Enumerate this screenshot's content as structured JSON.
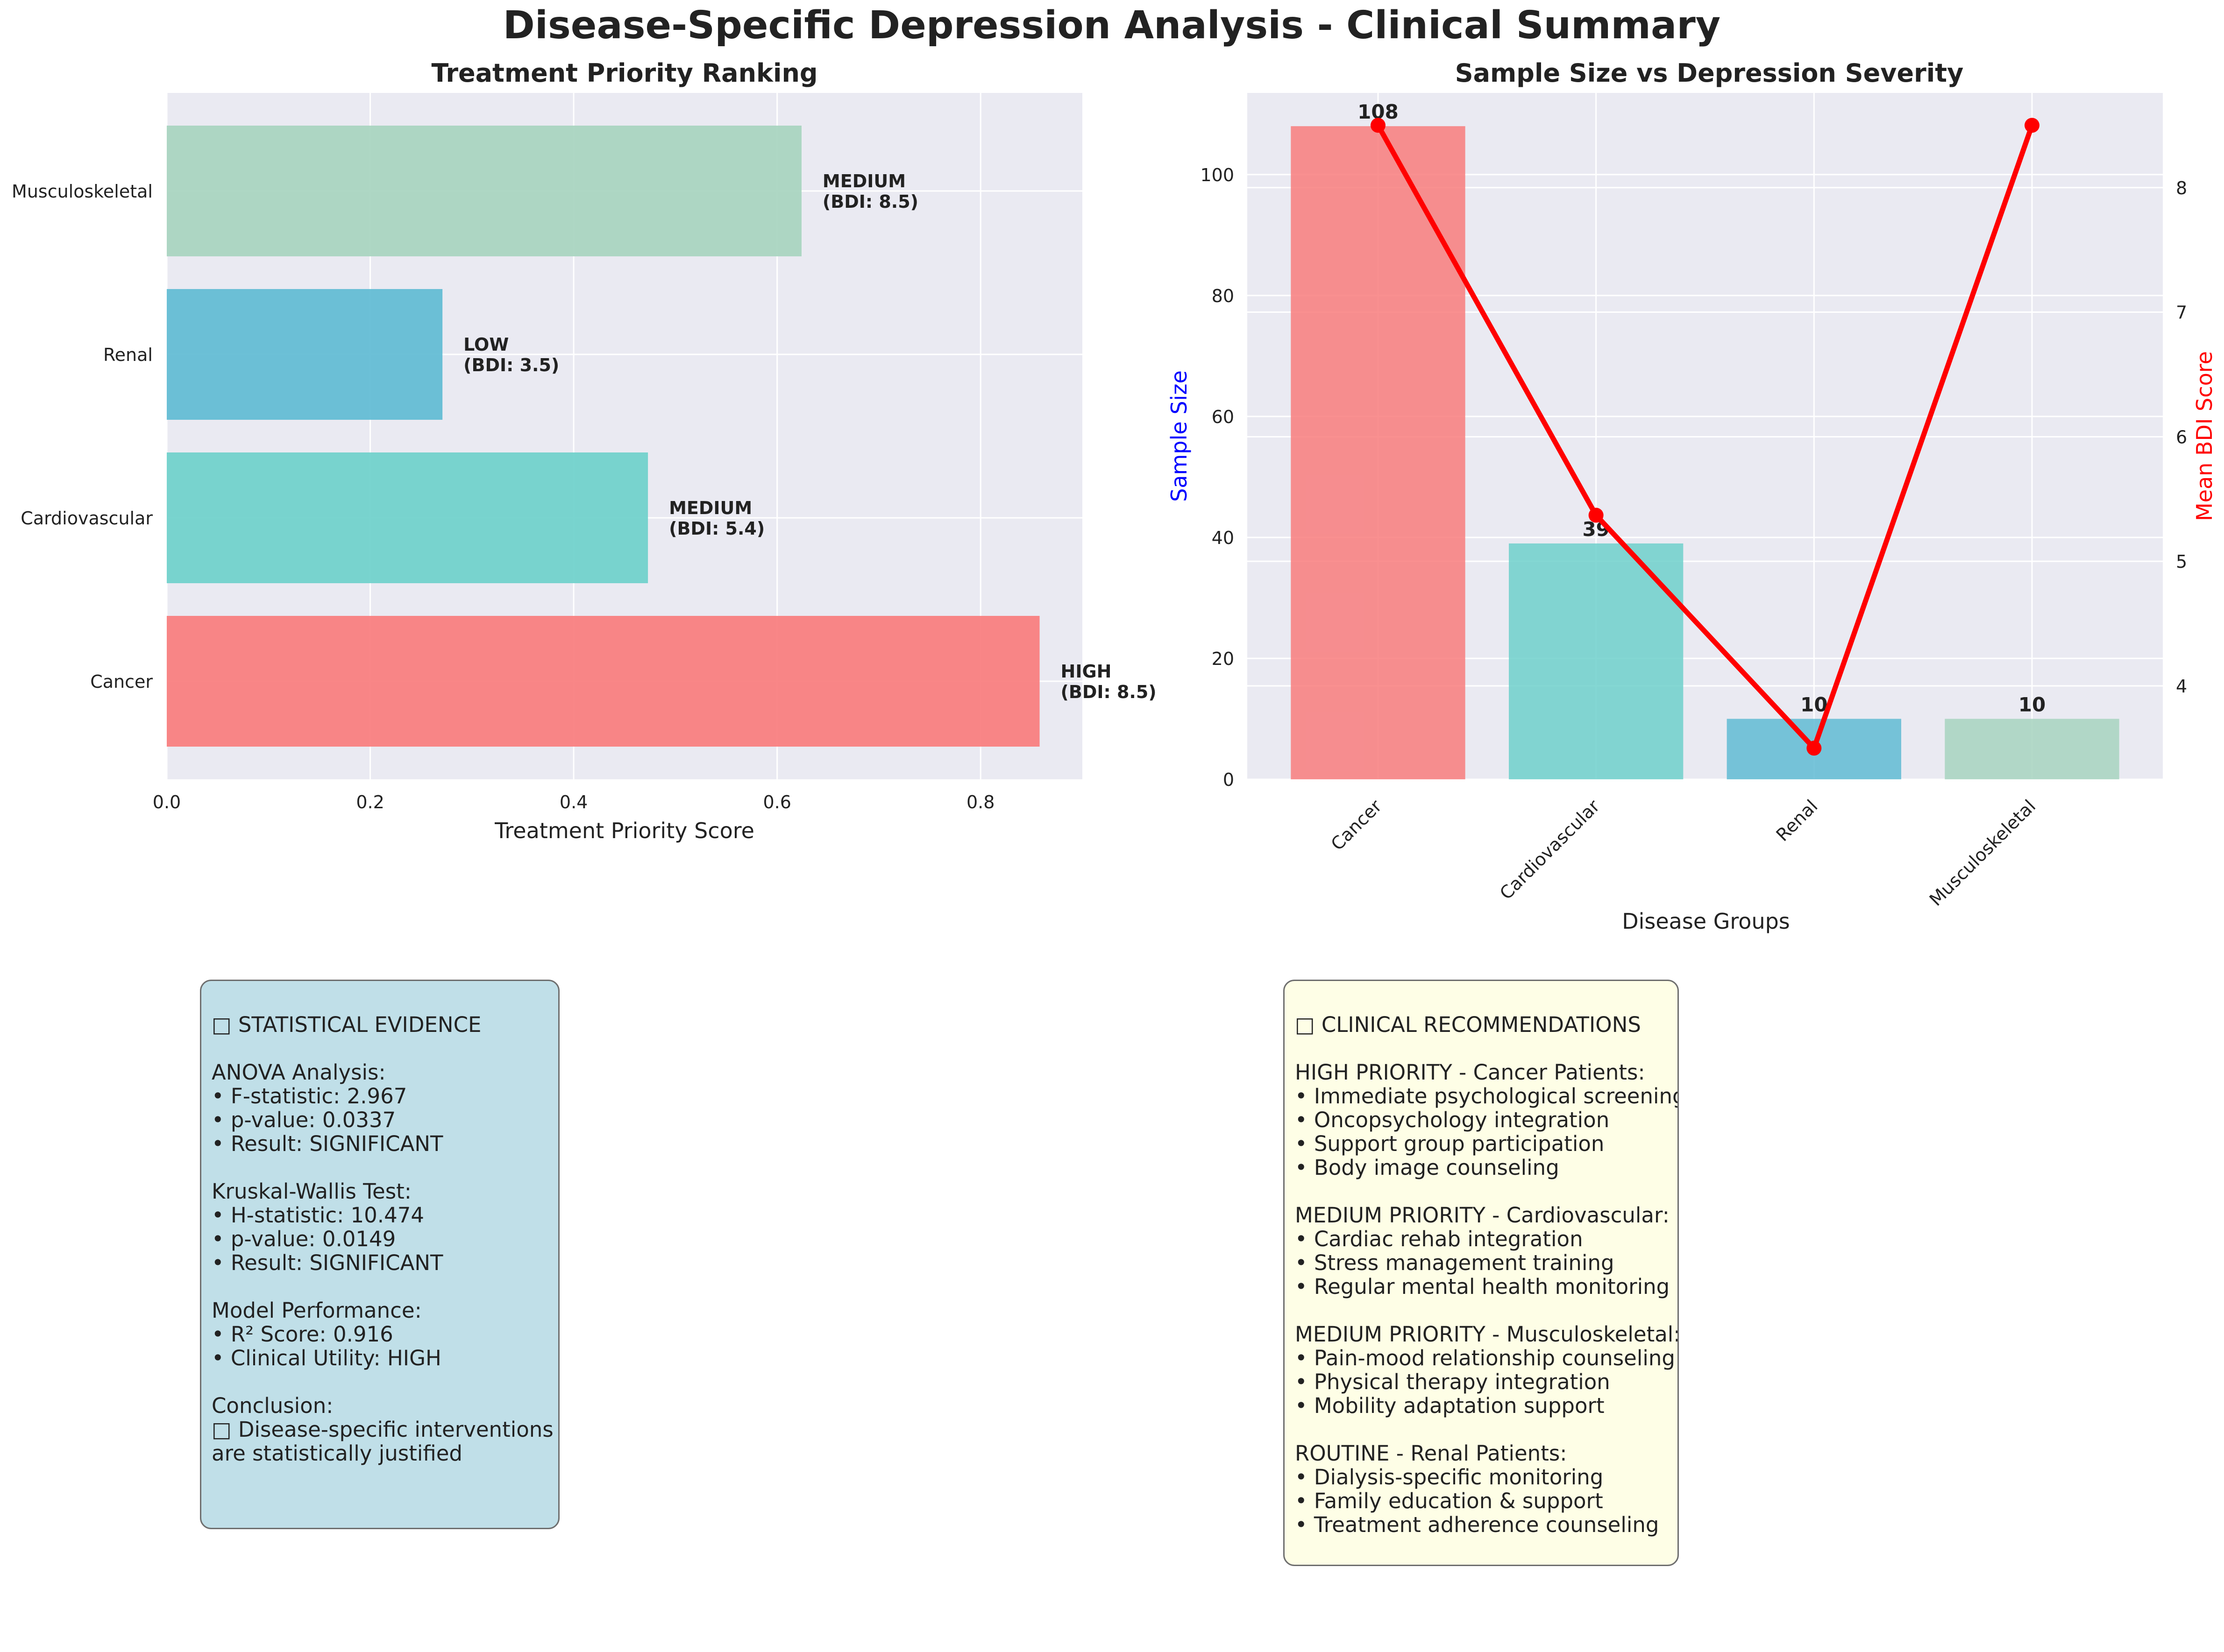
{
  "figure": {
    "title": "Disease-Specific Depression Analysis - Clinical Summary"
  },
  "colors": {
    "panel_bg": "#eaeaf2",
    "grid": "#ffffff",
    "categories": [
      "#f87c7d",
      "#6ed0cb",
      "#60bbd4",
      "#a7d4bf"
    ],
    "line": "#ff0000",
    "left_axis_label": "#0000ff",
    "right_axis_label": "#ff0000"
  },
  "chart_data": [
    {
      "type": "bar",
      "orientation": "horizontal",
      "title": "Treatment Priority Ranking",
      "xlabel": "Treatment Priority Score",
      "ylabel": "",
      "categories": [
        "Cancer",
        "Cardiovascular",
        "Renal",
        "Musculoskeletal"
      ],
      "values": [
        0.858,
        0.473,
        0.271,
        0.624
      ],
      "data_labels": [
        [
          "HIGH",
          "(BDI: 8.5)"
        ],
        [
          "MEDIUM",
          "(BDI: 5.4)"
        ],
        [
          "LOW",
          "(BDI: 3.5)"
        ],
        [
          "MEDIUM",
          "(BDI: 8.5)"
        ]
      ],
      "xlim": [
        0,
        0.9
      ],
      "xticks": [
        "0.0",
        "0.2",
        "0.4",
        "0.6",
        "0.8"
      ],
      "grid": true,
      "legend": "none"
    },
    {
      "type": "bar+line",
      "title": "Sample Size vs Depression Severity",
      "xlabel": "Disease Groups",
      "ylabel": "Sample Size",
      "y2label": "Mean BDI Score",
      "categories": [
        "Cancer",
        "Cardiovascular",
        "Renal",
        "Musculoskeletal"
      ],
      "series": [
        {
          "kind": "bar",
          "axis": "left",
          "values": [
            108,
            39,
            10,
            10
          ],
          "labels": [
            "108",
            "39",
            "10",
            "10"
          ]
        },
        {
          "kind": "line",
          "axis": "right",
          "values": [
            8.5,
            5.37,
            3.5,
            8.5
          ]
        }
      ],
      "ylim": [
        0,
        113.5
      ],
      "yticks": [
        "0",
        "20",
        "40",
        "60",
        "80",
        "100"
      ],
      "y2lim": [
        3.25,
        8.76
      ],
      "y2ticks": [
        "4",
        "5",
        "6",
        "7",
        "8"
      ],
      "grid": true,
      "legend": "none"
    }
  ],
  "stats_box": {
    "text": "□ STATISTICAL EVIDENCE\n\nANOVA Analysis:\n• F-statistic: 2.967\n• p-value: 0.0337\n• Result: SIGNIFICANT\n\nKruskal-Wallis Test:\n• H-statistic: 10.474\n• p-value: 0.0149\n• Result: SIGNIFICANT\n\nModel Performance:\n• R² Score: 0.916\n• Clinical Utility: HIGH\n\nConclusion:\n□ Disease-specific interventions\nare statistically justified"
  },
  "recommendations_box": {
    "text": "□ CLINICAL RECOMMENDATIONS\n\nHIGH PRIORITY - Cancer Patients:\n• Immediate psychological screening\n• Oncopsychology integration\n• Support group participation\n• Body image counseling\n\nMEDIUM PRIORITY - Cardiovascular:\n• Cardiac rehab integration\n• Stress management training\n• Regular mental health monitoring\n\nMEDIUM PRIORITY - Musculoskeletal:\n• Pain-mood relationship counseling\n• Physical therapy integration\n• Mobility adaptation support\n\nROUTINE - Renal Patients:\n• Dialysis-specific monitoring\n• Family education & support\n• Treatment adherence counseling"
  }
}
